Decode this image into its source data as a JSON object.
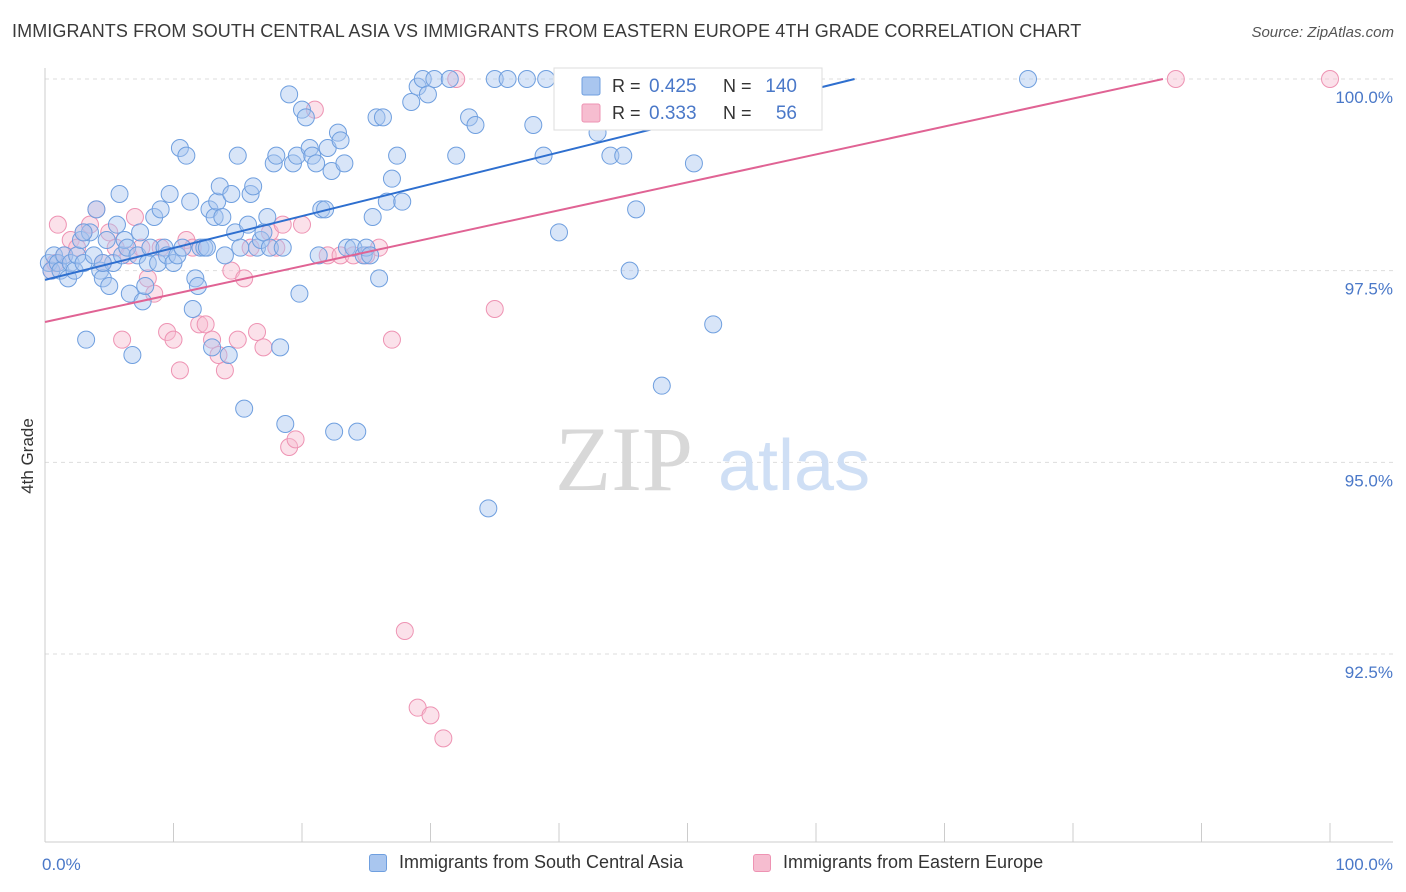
{
  "title": "IMMIGRANTS FROM SOUTH CENTRAL ASIA VS IMMIGRANTS FROM EASTERN EUROPE 4TH GRADE CORRELATION CHART",
  "source": "Source: ZipAtlas.com",
  "watermark": {
    "zip": "ZIP",
    "atlas": "atlas"
  },
  "colors": {
    "blue_fill": "#a9c6ef",
    "blue_stroke": "#6f9fdf",
    "blue_line": "#2e6fcf",
    "pink_fill": "#f6bdd0",
    "pink_stroke": "#ee93b3",
    "pink_line": "#e06394",
    "tick_label": "#4a78c8",
    "grid": "#dddddd"
  },
  "legend_box": {
    "rows": [
      {
        "r_label": "R =",
        "r_value": "0.425",
        "n_label": "N =",
        "n_value": "140",
        "series": "blue"
      },
      {
        "r_label": "R =",
        "r_value": "0.333",
        "n_label": "N =",
        "n_value": "56",
        "series": "pink"
      }
    ]
  },
  "chart_data": {
    "type": "scatter",
    "title": "IMMIGRANTS FROM SOUTH CENTRAL ASIA VS IMMIGRANTS FROM EASTERN EUROPE 4TH GRADE CORRELATION CHART",
    "xlabel": "",
    "ylabel": "4th Grade",
    "xlim": [
      0,
      100
    ],
    "ylim": [
      90.3,
      100.3
    ],
    "x_tick_labels": [
      "0.0%",
      "100.0%"
    ],
    "y_ticks": [
      92.5,
      95.0,
      97.5,
      100.0
    ],
    "y_tick_labels": [
      "92.5%",
      "95.0%",
      "97.5%",
      "100.0%"
    ],
    "grid": true,
    "legend_position": "bottom",
    "series": [
      {
        "name": "Immigrants from South Central Asia",
        "color": "blue",
        "R": 0.425,
        "N": 140,
        "trend": {
          "x0": 0,
          "y0": 97.38,
          "x1": 63,
          "y1": 100.0
        },
        "points": [
          [
            0.3,
            97.6
          ],
          [
            0.5,
            97.5
          ],
          [
            0.7,
            97.7
          ],
          [
            1.0,
            97.6
          ],
          [
            1.2,
            97.5
          ],
          [
            1.5,
            97.7
          ],
          [
            1.8,
            97.4
          ],
          [
            2.0,
            97.6
          ],
          [
            2.3,
            97.5
          ],
          [
            2.5,
            97.7
          ],
          [
            2.8,
            97.9
          ],
          [
            3.0,
            97.6
          ],
          [
            3.2,
            96.6
          ],
          [
            3.5,
            98.0
          ],
          [
            3.8,
            97.7
          ],
          [
            4.0,
            98.3
          ],
          [
            4.3,
            97.5
          ],
          [
            4.5,
            97.4
          ],
          [
            4.8,
            97.9
          ],
          [
            5.0,
            97.3
          ],
          [
            5.3,
            97.6
          ],
          [
            5.6,
            98.1
          ],
          [
            5.8,
            98.5
          ],
          [
            6.0,
            97.7
          ],
          [
            6.2,
            97.9
          ],
          [
            6.4,
            97.8
          ],
          [
            6.6,
            97.2
          ],
          [
            6.8,
            96.4
          ],
          [
            7.2,
            97.7
          ],
          [
            7.4,
            98.0
          ],
          [
            7.6,
            97.1
          ],
          [
            7.8,
            97.3
          ],
          [
            8.0,
            97.6
          ],
          [
            8.2,
            97.8
          ],
          [
            8.5,
            98.2
          ],
          [
            8.8,
            97.6
          ],
          [
            9.0,
            98.3
          ],
          [
            9.3,
            97.8
          ],
          [
            9.5,
            97.7
          ],
          [
            9.7,
            98.5
          ],
          [
            10.0,
            97.6
          ],
          [
            10.3,
            97.7
          ],
          [
            10.5,
            99.1
          ],
          [
            10.7,
            97.8
          ],
          [
            11.0,
            99.0
          ],
          [
            11.3,
            98.4
          ],
          [
            11.5,
            97.0
          ],
          [
            11.7,
            97.4
          ],
          [
            11.9,
            97.3
          ],
          [
            12.1,
            97.8
          ],
          [
            12.4,
            97.8
          ],
          [
            12.6,
            97.8
          ],
          [
            12.8,
            98.3
          ],
          [
            13.0,
            96.5
          ],
          [
            13.2,
            98.2
          ],
          [
            13.4,
            98.4
          ],
          [
            13.6,
            98.6
          ],
          [
            13.8,
            98.2
          ],
          [
            14.0,
            97.7
          ],
          [
            14.3,
            96.4
          ],
          [
            14.5,
            98.5
          ],
          [
            14.8,
            98.0
          ],
          [
            15.0,
            99.0
          ],
          [
            15.2,
            97.8
          ],
          [
            15.5,
            95.7
          ],
          [
            15.8,
            98.1
          ],
          [
            16.0,
            98.5
          ],
          [
            16.2,
            98.6
          ],
          [
            16.5,
            97.8
          ],
          [
            16.8,
            97.9
          ],
          [
            17.0,
            98.0
          ],
          [
            17.3,
            98.2
          ],
          [
            17.5,
            97.8
          ],
          [
            17.8,
            98.9
          ],
          [
            18.0,
            99.0
          ],
          [
            18.3,
            96.5
          ],
          [
            18.5,
            97.8
          ],
          [
            18.7,
            95.5
          ],
          [
            19.0,
            99.8
          ],
          [
            19.3,
            98.9
          ],
          [
            19.6,
            99.0
          ],
          [
            19.8,
            97.2
          ],
          [
            20.0,
            99.6
          ],
          [
            20.3,
            99.5
          ],
          [
            20.6,
            99.1
          ],
          [
            20.8,
            99.0
          ],
          [
            21.1,
            98.9
          ],
          [
            21.3,
            97.7
          ],
          [
            21.5,
            98.3
          ],
          [
            21.8,
            98.3
          ],
          [
            22.0,
            99.1
          ],
          [
            22.3,
            98.8
          ],
          [
            22.5,
            95.4
          ],
          [
            22.8,
            99.3
          ],
          [
            23.0,
            99.2
          ],
          [
            23.3,
            98.9
          ],
          [
            23.5,
            97.8
          ],
          [
            24.0,
            97.8
          ],
          [
            24.3,
            95.4
          ],
          [
            24.8,
            97.7
          ],
          [
            25.0,
            97.8
          ],
          [
            25.3,
            97.7
          ],
          [
            25.5,
            98.2
          ],
          [
            25.8,
            99.5
          ],
          [
            26.0,
            97.4
          ],
          [
            26.3,
            99.5
          ],
          [
            26.6,
            98.4
          ],
          [
            27.0,
            98.7
          ],
          [
            27.4,
            99.0
          ],
          [
            27.8,
            98.4
          ],
          [
            28.5,
            99.7
          ],
          [
            29.0,
            99.9
          ],
          [
            29.4,
            100.0
          ],
          [
            29.8,
            99.8
          ],
          [
            30.3,
            100.0
          ],
          [
            31.5,
            100.0
          ],
          [
            32.0,
            99.0
          ],
          [
            33.0,
            99.5
          ],
          [
            33.5,
            99.4
          ],
          [
            34.5,
            94.4
          ],
          [
            35.0,
            100.0
          ],
          [
            36.0,
            100.0
          ],
          [
            37.5,
            100.0
          ],
          [
            38.0,
            99.4
          ],
          [
            38.8,
            99.0
          ],
          [
            39.0,
            100.0
          ],
          [
            40.0,
            98.0
          ],
          [
            42.0,
            100.0
          ],
          [
            43.0,
            99.3
          ],
          [
            44.0,
            99.0
          ],
          [
            45.0,
            99.0
          ],
          [
            45.5,
            97.5
          ],
          [
            46.0,
            98.3
          ],
          [
            47.0,
            100.0
          ],
          [
            48.0,
            96.0
          ],
          [
            50.5,
            98.9
          ],
          [
            52.0,
            96.8
          ],
          [
            76.5,
            100.0
          ],
          [
            3.0,
            98.0
          ],
          [
            4.5,
            97.6
          ]
        ]
      },
      {
        "name": "Immigrants from Eastern Europe",
        "color": "pink",
        "R": 0.333,
        "N": 56,
        "trend": {
          "x0": 0,
          "y0": 96.83,
          "x1": 87,
          "y1": 100.0
        },
        "points": [
          [
            0.5,
            97.5
          ],
          [
            0.8,
            97.6
          ],
          [
            1.0,
            98.1
          ],
          [
            1.5,
            97.7
          ],
          [
            2.0,
            97.9
          ],
          [
            2.5,
            97.8
          ],
          [
            3.0,
            98.0
          ],
          [
            3.5,
            98.1
          ],
          [
            4.0,
            98.3
          ],
          [
            4.5,
            97.6
          ],
          [
            5.0,
            98.0
          ],
          [
            5.5,
            97.8
          ],
          [
            6.0,
            96.6
          ],
          [
            6.5,
            97.7
          ],
          [
            7.0,
            98.2
          ],
          [
            7.5,
            97.8
          ],
          [
            8.0,
            97.4
          ],
          [
            8.5,
            97.2
          ],
          [
            9.0,
            97.8
          ],
          [
            9.5,
            96.7
          ],
          [
            10.0,
            96.6
          ],
          [
            10.5,
            96.2
          ],
          [
            11.0,
            97.9
          ],
          [
            11.5,
            97.8
          ],
          [
            12.0,
            96.8
          ],
          [
            12.5,
            96.8
          ],
          [
            13.0,
            96.6
          ],
          [
            13.5,
            96.4
          ],
          [
            14.0,
            96.2
          ],
          [
            14.5,
            97.5
          ],
          [
            15.0,
            96.6
          ],
          [
            15.5,
            97.4
          ],
          [
            16.0,
            97.8
          ],
          [
            16.5,
            96.7
          ],
          [
            17.0,
            96.5
          ],
          [
            17.5,
            98.0
          ],
          [
            18.0,
            97.8
          ],
          [
            18.5,
            98.1
          ],
          [
            19.0,
            95.2
          ],
          [
            19.5,
            95.3
          ],
          [
            20.0,
            98.1
          ],
          [
            21.0,
            99.6
          ],
          [
            22.0,
            97.7
          ],
          [
            23.0,
            97.7
          ],
          [
            24.0,
            97.7
          ],
          [
            25.0,
            97.7
          ],
          [
            26.0,
            97.8
          ],
          [
            27.0,
            96.6
          ],
          [
            28.0,
            92.8
          ],
          [
            29.0,
            91.8
          ],
          [
            30.0,
            91.7
          ],
          [
            31.0,
            91.4
          ],
          [
            32.0,
            100.0
          ],
          [
            35.0,
            97.0
          ],
          [
            88.0,
            100.0
          ],
          [
            100.0,
            100.0
          ]
        ]
      }
    ]
  },
  "bottom_legend": [
    {
      "label": "Immigrants from South Central Asia",
      "series": "blue"
    },
    {
      "label": "Immigrants from Eastern Europe",
      "series": "pink"
    }
  ]
}
